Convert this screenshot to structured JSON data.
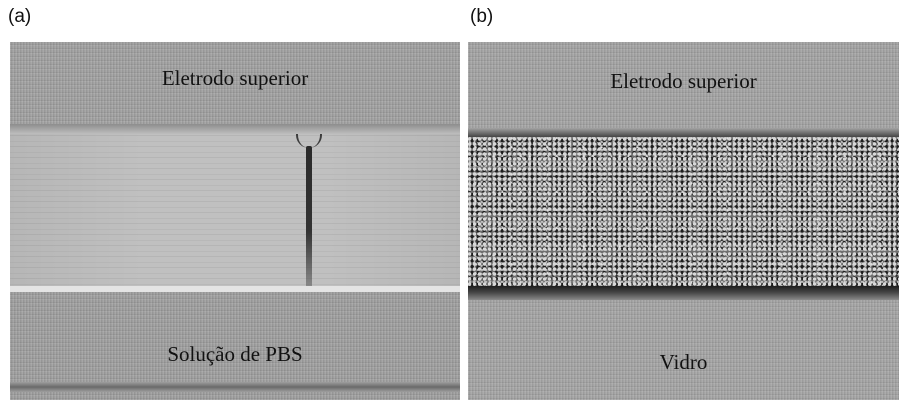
{
  "panels": {
    "a": {
      "letter": "(a)",
      "top_label": "Eletrodo superior",
      "bottom_label": "Solução de PBS"
    },
    "b": {
      "letter": "(b)",
      "top_label": "Eletrodo superior",
      "bottom_label": "Vidro"
    }
  }
}
